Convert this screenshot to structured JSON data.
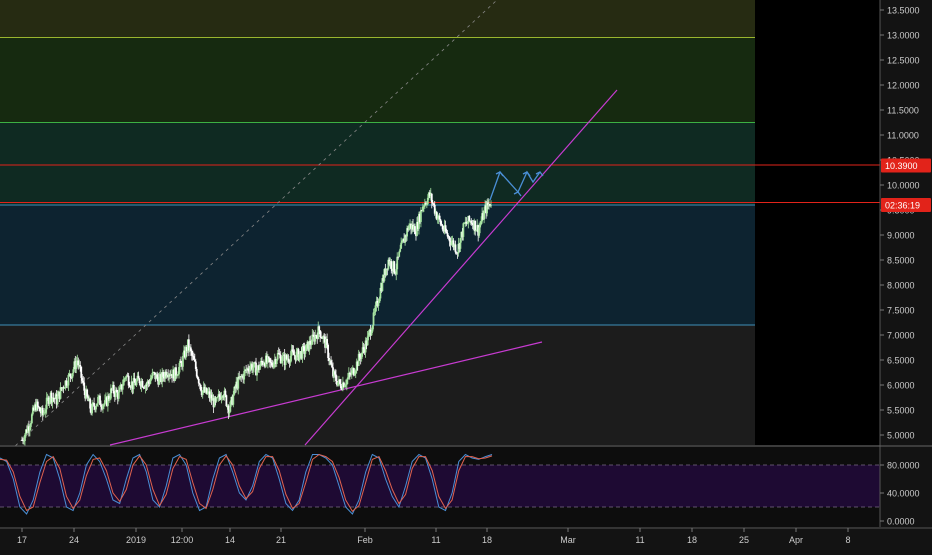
{
  "colors": {
    "background": "#131313",
    "candle_up": "#a6e3a1",
    "candle_down": "#ffffff",
    "stoch_k": "#4a8fd6",
    "stoch_d": "#e0624f",
    "trendline": "#c73bd1",
    "arrow": "#4a8fd6",
    "level_red": "#e2231a",
    "level_green": "#3cb043",
    "level_yellowgreen": "#9ab52e",
    "level_blue": "#3f8fb8",
    "stoch_band": "#1e0a33"
  },
  "price_labels": {
    "last_price": "10.3900",
    "countdown": "02:36:19"
  },
  "chart_data": [
    {
      "type": "candlestick",
      "title": "",
      "y_axis_side": "right",
      "ylim": [
        4.8,
        13.7
      ],
      "y_ticks": [
        "13.5000",
        "13.0000",
        "12.5000",
        "12.0000",
        "11.5000",
        "11.0000",
        "10.5000",
        "10.0000",
        "9.5000",
        "9.0000",
        "8.5000",
        "8.0000",
        "7.5000",
        "7.0000",
        "6.5000",
        "6.0000",
        "5.5000",
        "5.0000"
      ],
      "x_ticks": [
        "17",
        "24",
        "2019",
        "12:00",
        "14",
        "21",
        "Feb",
        "11",
        "18",
        "Mar",
        "11",
        "18",
        "25",
        "Apr",
        "8"
      ],
      "fib_zones": [
        {
          "from": 12.95,
          "to": 13.8,
          "color": "#262b12",
          "line": "#9ab52e"
        },
        {
          "from": 11.25,
          "to": 12.95,
          "color": "#162a10",
          "line": "#3cb043"
        },
        {
          "from": 10.4,
          "to": 11.25,
          "color": "#0f2a22",
          "line": "#e2231a"
        },
        {
          "from": 9.6,
          "to": 10.4,
          "color": "#0f2a22",
          "line": "#e2231a"
        },
        {
          "from": 7.2,
          "to": 9.6,
          "color": "#0d2330",
          "line": "#3f8fb8"
        },
        {
          "from": 4.8,
          "to": 7.2,
          "color": "#1c1c1c",
          "line": "#3f8fb8"
        }
      ],
      "horizontal_levels": [
        {
          "price": 12.95,
          "color": "#9ab52e"
        },
        {
          "price": 11.25,
          "color": "#3cb043"
        },
        {
          "price": 10.4,
          "color": "#e2231a"
        },
        {
          "price": 9.65,
          "color": "#e2231a"
        },
        {
          "price": 9.6,
          "color": "#3f8fb8"
        },
        {
          "price": 7.2,
          "color": "#3f8fb8"
        }
      ],
      "close_series": [
        4.9,
        5.2,
        5.6,
        5.4,
        5.8,
        5.7,
        6.0,
        6.2,
        6.5,
        5.9,
        5.5,
        5.7,
        5.6,
        5.9,
        5.8,
        6.2,
        6.0,
        6.1,
        6.0,
        6.2,
        6.1,
        6.3,
        6.2,
        6.4,
        6.8,
        6.4,
        5.9,
        5.8,
        5.6,
        5.9,
        5.5,
        6.0,
        6.2,
        6.4,
        6.3,
        6.5,
        6.4,
        6.6,
        6.5,
        6.6,
        6.6,
        6.7,
        6.9,
        7.1,
        6.8,
        6.2,
        6.0,
        6.1,
        6.3,
        6.6,
        6.9,
        7.4,
        8.0,
        8.5,
        8.3,
        8.8,
        9.2,
        9.1,
        9.6,
        9.8,
        9.4,
        9.1,
        8.9,
        8.7,
        9.2,
        9.3,
        9.1,
        9.5,
        9.7
      ],
      "price_labels": [
        {
          "price": 10.39,
          "text": "10.3900",
          "color": "#e2231a"
        },
        {
          "price": 9.6,
          "text": "02:36:19",
          "color": "#e2231a"
        }
      ],
      "projection_arrows": [
        [
          10.3,
          9.9
        ],
        [
          9.9,
          10.3
        ],
        [
          10.3,
          10.1
        ],
        [
          10.1,
          10.3
        ]
      ]
    },
    {
      "type": "line",
      "title": "",
      "y_axis_side": "right",
      "ylim": [
        0,
        100
      ],
      "y_ticks": [
        "80.0000",
        "40.0000",
        "0.0000"
      ],
      "band": [
        20,
        80
      ],
      "series": [
        {
          "name": "",
          "color": "#4a8fd6",
          "values": [
            90,
            85,
            60,
            20,
            10,
            30,
            70,
            95,
            90,
            60,
            20,
            15,
            40,
            80,
            95,
            85,
            60,
            30,
            25,
            60,
            90,
            95,
            70,
            30,
            20,
            50,
            90,
            95,
            80,
            40,
            15,
            20,
            60,
            90,
            95,
            70,
            40,
            30,
            50,
            85,
            95,
            90,
            60,
            25,
            15,
            30,
            70,
            95,
            95,
            90,
            80,
            50,
            20,
            10,
            30,
            70,
            95,
            90,
            60,
            35,
            20,
            50,
            85,
            95,
            90,
            60,
            20,
            15,
            40,
            85,
            95,
            90,
            88,
            92,
            95
          ]
        },
        {
          "name": "",
          "color": "#e0624f",
          "values": [
            88,
            87,
            70,
            35,
            15,
            20,
            55,
            85,
            92,
            75,
            35,
            18,
            30,
            65,
            88,
            90,
            72,
            40,
            28,
            45,
            80,
            93,
            80,
            45,
            22,
            38,
            75,
            92,
            88,
            55,
            25,
            18,
            45,
            80,
            93,
            80,
            50,
            32,
            42,
            75,
            92,
            92,
            72,
            38,
            18,
            25,
            55,
            88,
            95,
            92,
            85,
            62,
            30,
            14,
            22,
            55,
            88,
            92,
            72,
            45,
            25,
            38,
            75,
            92,
            92,
            72,
            35,
            18,
            30,
            72,
            92,
            92,
            89,
            90,
            93
          ]
        }
      ]
    }
  ]
}
